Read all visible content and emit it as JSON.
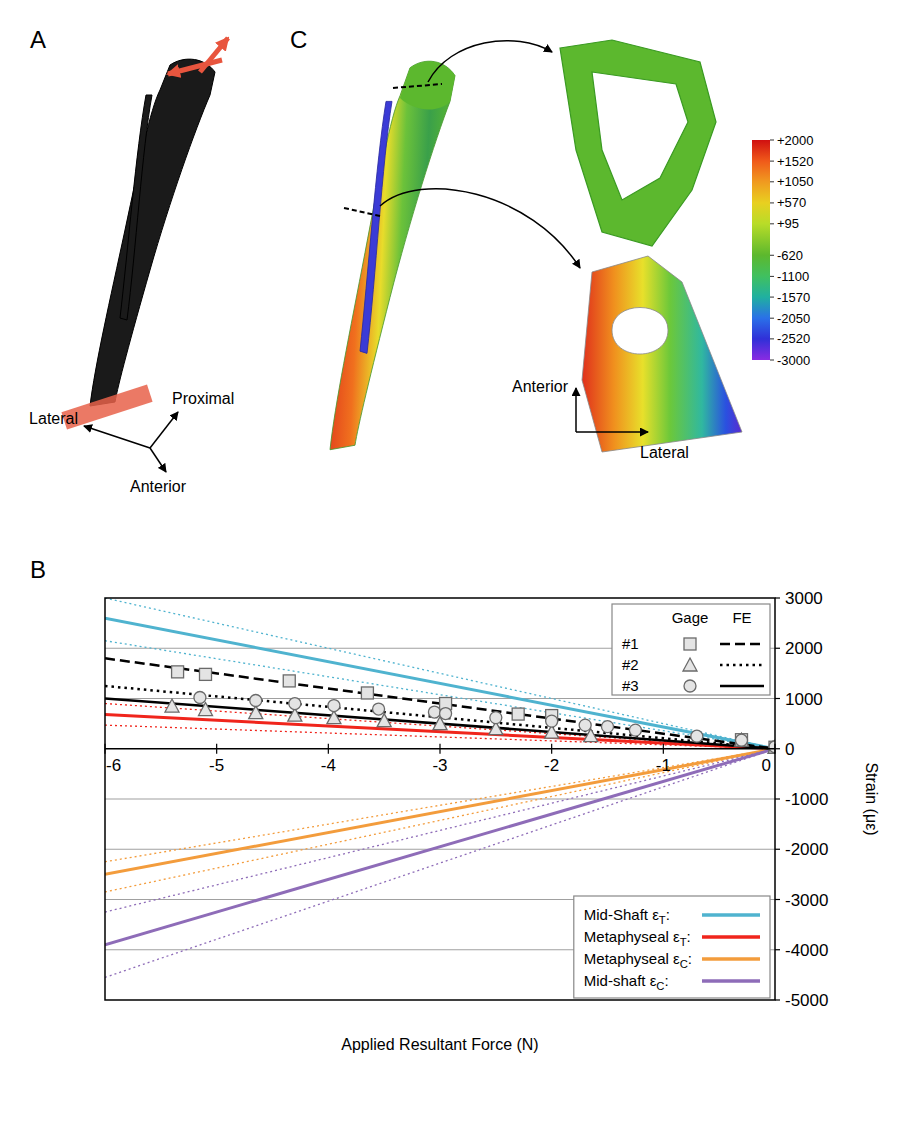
{
  "panels": [
    {
      "letter": "A",
      "labels": [
        "Lateral",
        "Proximal",
        "Anterior"
      ]
    },
    {
      "letter": "C",
      "labels": [
        "Anterior",
        "Lateral"
      ],
      "colorbar": {
        "ticks": [
          {
            "value": 2000,
            "label": "+2000"
          },
          {
            "value": 1520,
            "label": "+1520"
          },
          {
            "value": 1050,
            "label": "+1050"
          },
          {
            "value": 570,
            "label": "+570"
          },
          {
            "value": 95,
            "label": "+95"
          },
          -620,
          -1100,
          -1570,
          -2050,
          -2520,
          -3000
        ]
      }
    },
    {
      "letter": "B"
    }
  ],
  "chart_data": {
    "type": "line",
    "xlabel": "Applied Resultant Force (N)",
    "ylabel": "Strain (με)",
    "xlim": [
      -6,
      0
    ],
    "ylim": [
      -5000,
      3000
    ],
    "xticks": [
      -6,
      -5,
      -4,
      -3,
      -2,
      -1,
      0
    ],
    "yticks": [
      -5000,
      -4000,
      -3000,
      -2000,
      -1000,
      0,
      1000,
      2000,
      3000
    ],
    "grid": true,
    "legend": "right",
    "legend_headers": [
      "Gage",
      "FE"
    ],
    "series": [
      {
        "name": "#1",
        "group": "Gage",
        "type": "scatter",
        "marker": "square",
        "color": "#666666",
        "x": [
          -5.35,
          -5.1,
          -4.35,
          -3.65,
          -2.95,
          -2.3,
          -2.0,
          -0.3,
          0
        ],
        "values": [
          1530,
          1480,
          1350,
          1110,
          900,
          690,
          660,
          180,
          30
        ]
      },
      {
        "name": "#2",
        "group": "Gage",
        "type": "scatter",
        "marker": "triangle",
        "color": "#666666",
        "x": [
          -5.4,
          -5.1,
          -4.65,
          -4.3,
          -3.95,
          -3.5,
          -3.0,
          -2.5,
          -2.0,
          -1.65,
          -0.3,
          0
        ],
        "values": [
          850,
          780,
          720,
          670,
          620,
          560,
          500,
          400,
          330,
          260,
          170,
          30
        ]
      },
      {
        "name": "#3",
        "group": "Gage",
        "type": "scatter",
        "marker": "circle",
        "color": "#666666",
        "x": [
          -5.15,
          -4.65,
          -4.3,
          -3.95,
          -3.55,
          -3.05,
          -2.95,
          -2.5,
          -2.0,
          -1.7,
          -1.5,
          -1.25,
          -0.7,
          -0.3,
          0
        ],
        "values": [
          1020,
          960,
          900,
          860,
          790,
          730,
          700,
          620,
          550,
          470,
          440,
          370,
          250,
          170,
          40
        ]
      },
      {
        "name": "#1",
        "group": "FE",
        "type": "line",
        "line_style": "dashed",
        "color": "#000000",
        "x": [
          -6,
          0
        ],
        "values": [
          1800,
          0
        ]
      },
      {
        "name": "#2",
        "group": "FE",
        "type": "line",
        "line_style": "dotted",
        "color": "#000000",
        "x": [
          -6,
          0
        ],
        "values": [
          1250,
          0
        ]
      },
      {
        "name": "#3",
        "group": "FE",
        "type": "line",
        "line_style": "solid",
        "color": "#000000",
        "x": [
          -6,
          0
        ],
        "values": [
          1000,
          0
        ]
      },
      {
        "name": "Mid-Shaft εT:",
        "type": "line",
        "line_style": "solid",
        "color": "#4fb3cf",
        "x": [
          -6,
          0
        ],
        "values": [
          2600,
          0
        ],
        "upper": [
          3000,
          0
        ],
        "lower": [
          2150,
          0
        ]
      },
      {
        "name": "Metaphyseal εT:",
        "type": "line",
        "line_style": "solid",
        "color": "#f0251c",
        "x": [
          -6,
          0
        ],
        "values": [
          680,
          0
        ],
        "upper": [
          900,
          0
        ],
        "lower": [
          470,
          0
        ]
      },
      {
        "name": "Metaphyseal εC:",
        "type": "line",
        "line_style": "solid",
        "color": "#f39c3c",
        "x": [
          -6,
          0
        ],
        "values": [
          -2500,
          0
        ],
        "upper": [
          -2250,
          0
        ],
        "lower": [
          -2850,
          0
        ]
      },
      {
        "name": "Mid-shaft εC:",
        "type": "line",
        "line_style": "solid",
        "color": "#8e6cb8",
        "x": [
          -6,
          0
        ],
        "values": [
          -3900,
          0
        ],
        "upper": [
          -3250,
          0
        ],
        "lower": [
          -4550,
          0
        ]
      }
    ]
  }
}
